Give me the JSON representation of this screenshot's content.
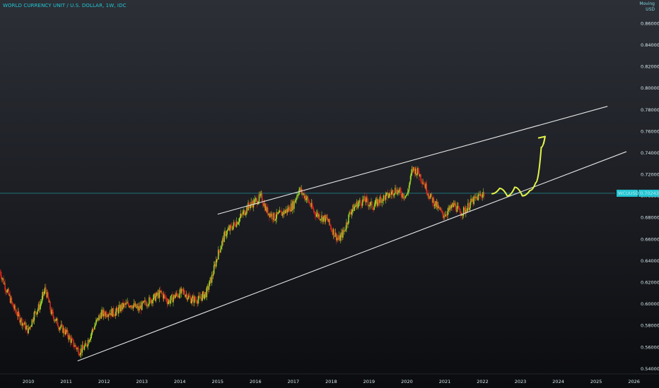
{
  "header": {
    "symbol_title": "WORLD CURRENCY UNIT / U.S. DOLLAR, 1W, IDC",
    "currency_top": "Moving",
    "currency": "USD"
  },
  "colors": {
    "up": "#9bd22a",
    "down": "#d8271d",
    "accent": "#23c6d4",
    "trendline": "#e6e6e6",
    "arrow": "#e2f24a"
  },
  "price_label": {
    "symbol": "WCUUSD",
    "price": "0.70243"
  },
  "chart_data": {
    "type": "candlestick",
    "x_axis_labels": [
      "2010",
      "2011",
      "2012",
      "2013",
      "2014",
      "2015",
      "2016",
      "2017",
      "2018",
      "2019",
      "2020",
      "2021",
      "2022",
      "2023",
      "2024",
      "2025",
      "2026"
    ],
    "y_axis_labels": [
      "0.86000",
      "0.84000",
      "0.82000",
      "0.80000",
      "0.78000",
      "0.76000",
      "0.74000",
      "0.72000",
      "0.70000",
      "0.68000",
      "0.66000",
      "0.64000",
      "0.62000",
      "0.60000",
      "0.58000",
      "0.56000",
      "0.54000"
    ],
    "ylim": [
      0.535,
      0.875
    ],
    "xlim": [
      2009.25,
      2026.1
    ],
    "last_price": 0.70243,
    "price_path": [
      [
        2009.25,
        0.63
      ],
      [
        2009.4,
        0.615
      ],
      [
        2009.6,
        0.597
      ],
      [
        2009.8,
        0.585
      ],
      [
        2010.0,
        0.575
      ],
      [
        2010.15,
        0.59
      ],
      [
        2010.3,
        0.598
      ],
      [
        2010.45,
        0.614
      ],
      [
        2010.6,
        0.592
      ],
      [
        2010.8,
        0.58
      ],
      [
        2011.0,
        0.573
      ],
      [
        2011.2,
        0.562
      ],
      [
        2011.35,
        0.556
      ],
      [
        2011.5,
        0.56
      ],
      [
        2011.7,
        0.576
      ],
      [
        2011.9,
        0.59
      ],
      [
        2012.1,
        0.592
      ],
      [
        2012.3,
        0.592
      ],
      [
        2012.5,
        0.598
      ],
      [
        2012.7,
        0.6
      ],
      [
        2012.9,
        0.595
      ],
      [
        2013.1,
        0.601
      ],
      [
        2013.3,
        0.605
      ],
      [
        2013.5,
        0.61
      ],
      [
        2013.7,
        0.602
      ],
      [
        2013.9,
        0.608
      ],
      [
        2014.1,
        0.611
      ],
      [
        2014.3,
        0.604
      ],
      [
        2014.5,
        0.604
      ],
      [
        2014.7,
        0.61
      ],
      [
        2014.85,
        0.625
      ],
      [
        2015.0,
        0.645
      ],
      [
        2015.2,
        0.665
      ],
      [
        2015.4,
        0.672
      ],
      [
        2015.6,
        0.68
      ],
      [
        2015.8,
        0.69
      ],
      [
        2016.0,
        0.695
      ],
      [
        2016.15,
        0.699
      ],
      [
        2016.3,
        0.686
      ],
      [
        2016.5,
        0.68
      ],
      [
        2016.7,
        0.684
      ],
      [
        2016.85,
        0.687
      ],
      [
        2017.0,
        0.692
      ],
      [
        2017.15,
        0.706
      ],
      [
        2017.35,
        0.698
      ],
      [
        2017.55,
        0.685
      ],
      [
        2017.75,
        0.68
      ],
      [
        2017.9,
        0.678
      ],
      [
        2018.0,
        0.67
      ],
      [
        2018.2,
        0.659
      ],
      [
        2018.35,
        0.668
      ],
      [
        2018.5,
        0.685
      ],
      [
        2018.7,
        0.693
      ],
      [
        2018.9,
        0.696
      ],
      [
        2019.1,
        0.69
      ],
      [
        2019.3,
        0.697
      ],
      [
        2019.5,
        0.7
      ],
      [
        2019.7,
        0.706
      ],
      [
        2019.85,
        0.702
      ],
      [
        2020.0,
        0.7
      ],
      [
        2020.15,
        0.725
      ],
      [
        2020.3,
        0.722
      ],
      [
        2020.45,
        0.712
      ],
      [
        2020.6,
        0.7
      ],
      [
        2020.8,
        0.69
      ],
      [
        2020.95,
        0.682
      ],
      [
        2021.1,
        0.686
      ],
      [
        2021.25,
        0.692
      ],
      [
        2021.4,
        0.684
      ],
      [
        2021.55,
        0.687
      ],
      [
        2021.7,
        0.694
      ],
      [
        2021.85,
        0.698
      ],
      [
        2022.0,
        0.702
      ],
      [
        2022.05,
        0.702
      ]
    ],
    "upper_trendline": [
      [
        2015.0,
        0.683
      ],
      [
        2025.3,
        0.783
      ]
    ],
    "lower_trendline": [
      [
        2011.3,
        0.547
      ],
      [
        2025.8,
        0.741
      ]
    ],
    "projection_path": [
      [
        2022.25,
        0.702
      ],
      [
        2022.45,
        0.707
      ],
      [
        2022.65,
        0.7
      ],
      [
        2022.85,
        0.708
      ],
      [
        2023.05,
        0.7
      ],
      [
        2023.25,
        0.705
      ],
      [
        2023.4,
        0.712
      ],
      [
        2023.55,
        0.745
      ],
      [
        2023.65,
        0.755
      ]
    ]
  }
}
